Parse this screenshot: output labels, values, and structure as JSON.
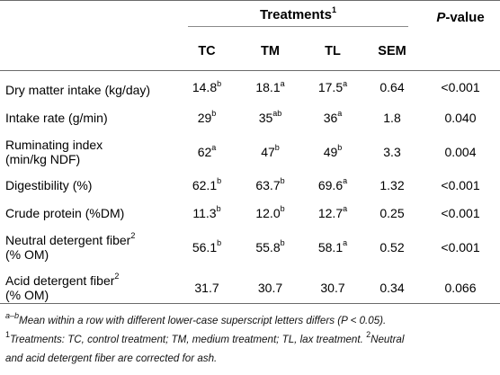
{
  "header": {
    "treatments_label": "Treatments",
    "treatments_sup": "1",
    "pvalue_label": "P",
    "pvalue_suffix": "-value",
    "columns": [
      "TC",
      "TM",
      "TL",
      "SEM"
    ]
  },
  "rows": [
    {
      "label": [
        "Dry matter intake (kg/day)"
      ],
      "tc": "14.8",
      "tc_sup": "b",
      "tm": "18.1",
      "tm_sup": "a",
      "tl": "17.5",
      "tl_sup": "a",
      "sem": "0.64",
      "p": "<0.001"
    },
    {
      "label": [
        "Intake rate (g/min)"
      ],
      "tc": "29",
      "tc_sup": "b",
      "tm": "35",
      "tm_sup": "ab",
      "tl": "36",
      "tl_sup": "a",
      "sem": "1.8",
      "p": "0.040"
    },
    {
      "label": [
        "Ruminating index",
        "(min/kg NDF)"
      ],
      "tc": "62",
      "tc_sup": "a",
      "tm": "47",
      "tm_sup": "b",
      "tl": "49",
      "tl_sup": "b",
      "sem": "3.3",
      "p": "0.004"
    },
    {
      "label": [
        "Digestibility (%)"
      ],
      "tc": "62.1",
      "tc_sup": "b",
      "tm": "63.7",
      "tm_sup": "b",
      "tl": "69.6",
      "tl_sup": "a",
      "sem": "1.32",
      "p": "<0.001"
    },
    {
      "label": [
        "Crude protein (%DM)"
      ],
      "tc": "11.3",
      "tc_sup": "b",
      "tm": "12.0",
      "tm_sup": "b",
      "tl": "12.7",
      "tl_sup": "a",
      "sem": "0.25",
      "p": "<0.001"
    },
    {
      "label": [
        "Neutral detergent fiber",
        "(% OM)"
      ],
      "label_sup": "2",
      "tc": "56.1",
      "tc_sup": "b",
      "tm": "55.8",
      "tm_sup": "b",
      "tl": "58.1",
      "tl_sup": "a",
      "sem": "0.52",
      "p": "<0.001"
    },
    {
      "label": [
        "Acid detergent fiber",
        "(% OM)"
      ],
      "label_sup": "2",
      "tc": "31.7",
      "tc_sup": "",
      "tm": "30.7",
      "tm_sup": "",
      "tl": "30.7",
      "tl_sup": "",
      "sem": "0.34",
      "p": "0.066"
    }
  ],
  "footnotes": {
    "a_sup": "a–b",
    "a_text": "Mean within a row with different lower-case superscript letters differs (P < 0.05).",
    "one_sup": "1",
    "one_text": "Treatments: TC, control treatment; TM, medium treatment; TL, lax treatment.",
    "two_sup": "2",
    "two_text_a": "Neutral",
    "two_text_b": "and acid detergent fiber are corrected for ash."
  }
}
